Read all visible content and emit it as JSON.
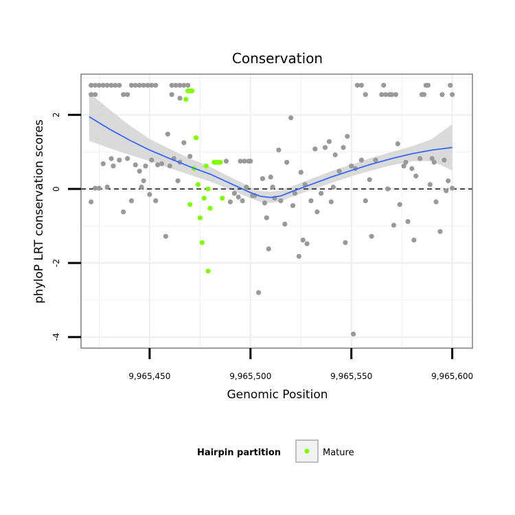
{
  "chart_data": {
    "type": "scatter",
    "title": "Conservation",
    "xlabel": "Genomic Position",
    "ylabel": "phyloP LRT conservation scores",
    "xlim": [
      9965416,
      9965610
    ],
    "ylim": [
      -4.3,
      3.1
    ],
    "x_ticks": [
      {
        "value": 9965450,
        "label": "9,965,450"
      },
      {
        "value": 9965500,
        "label": "9,965,500"
      },
      {
        "value": 9965550,
        "label": "9,965,550"
      },
      {
        "value": 9965600,
        "label": "9,965,600"
      }
    ],
    "y_ticks": [
      {
        "value": -4,
        "label": "-4"
      },
      {
        "value": -2,
        "label": "-2"
      },
      {
        "value": 0,
        "label": "0"
      },
      {
        "value": 2,
        "label": "2"
      }
    ],
    "grid": true,
    "reference_line": {
      "y": 0,
      "style": "dashed",
      "color": "#000000"
    },
    "colors": {
      "other": "#999999",
      "mature": "#7FFF00",
      "smooth": "#3366FF",
      "ribbon": "#D3D3D3",
      "panel_border": "#7F7F7F",
      "grid_major": "#F0F0F0"
    },
    "legend": {
      "title": "Hairpin partition",
      "placement": "bottom",
      "entries": [
        {
          "label": "Mature",
          "color": "#7FFF00"
        }
      ]
    },
    "series": [
      {
        "name": "Mature",
        "color": "#7FFF00",
        "points": [
          [
            9965468,
            2.42
          ],
          [
            9965469,
            2.65
          ],
          [
            9965470,
            2.65
          ],
          [
            9965471,
            2.65
          ],
          [
            9965473,
            1.38
          ],
          [
            9965472,
            0.55
          ],
          [
            9965474,
            0.12
          ],
          [
            9965470,
            -0.42
          ],
          [
            9965475,
            -0.78
          ],
          [
            9965476,
            -1.45
          ],
          [
            9965477,
            -0.25
          ],
          [
            9965478,
            0.62
          ],
          [
            9965479,
            -2.22
          ],
          [
            9965480,
            -0.52
          ],
          [
            9965482,
            0.72
          ],
          [
            9965483,
            0.72
          ],
          [
            9965484,
            0.72
          ],
          [
            9965485,
            0.72
          ],
          [
            9965486,
            -0.25
          ],
          [
            9965479,
            0.0
          ]
        ]
      },
      {
        "points": [
          [
            9965421,
            2.8
          ],
          [
            9965423,
            2.8
          ],
          [
            9965425,
            2.8
          ],
          [
            9965427,
            2.8
          ],
          [
            9965429,
            2.8
          ],
          [
            9965431,
            2.8
          ],
          [
            9965433,
            2.8
          ],
          [
            9965435,
            2.8
          ],
          [
            9965441,
            2.8
          ],
          [
            9965443,
            2.8
          ],
          [
            9965445,
            2.8
          ],
          [
            9965447,
            2.8
          ],
          [
            9965449,
            2.8
          ],
          [
            9965451,
            2.8
          ],
          [
            9965453,
            2.8
          ],
          [
            9965461,
            2.8
          ],
          [
            9965463,
            2.8
          ],
          [
            9965465,
            2.8
          ],
          [
            9965467,
            2.8
          ],
          [
            9965469,
            2.8
          ],
          [
            9965421,
            2.55
          ],
          [
            9965423,
            2.55
          ],
          [
            9965437,
            2.55
          ],
          [
            9965439,
            2.55
          ],
          [
            9965461,
            2.55
          ],
          [
            9965465,
            2.45
          ],
          [
            9965421,
            -0.35
          ],
          [
            9965423,
            0.02
          ],
          [
            9965425,
            0.02
          ],
          [
            9965427,
            0.68
          ],
          [
            9965429,
            0.05
          ],
          [
            9965431,
            0.82
          ],
          [
            9965432,
            0.62
          ],
          [
            9965435,
            0.78
          ],
          [
            9965437,
            -0.62
          ],
          [
            9965439,
            0.82
          ],
          [
            9965441,
            -0.32
          ],
          [
            9965443,
            0.65
          ],
          [
            9965445,
            0.48
          ],
          [
            9965446,
            0.05
          ],
          [
            9965447,
            0.22
          ],
          [
            9965448,
            0.62
          ],
          [
            9965450,
            -0.15
          ],
          [
            9965451,
            0.78
          ],
          [
            9965453,
            -0.32
          ],
          [
            9965454,
            0.65
          ],
          [
            9965456,
            0.68
          ],
          [
            9965458,
            -1.28
          ],
          [
            9965459,
            1.48
          ],
          [
            9965460,
            0.62
          ],
          [
            9965462,
            0.82
          ],
          [
            9965464,
            0.22
          ],
          [
            9965465,
            0.72
          ],
          [
            9965467,
            1.25
          ],
          [
            9965470,
            0.88
          ],
          [
            9965488,
            0.75
          ],
          [
            9965490,
            -0.35
          ],
          [
            9965492,
            -0.12
          ],
          [
            9965494,
            -0.22
          ],
          [
            9965495,
            0.75
          ],
          [
            9965497,
            0.75
          ],
          [
            9965499,
            0.75
          ],
          [
            9965500,
            0.75
          ],
          [
            9965496,
            -0.32
          ],
          [
            9965498,
            0.05
          ],
          [
            9965501,
            -0.18
          ],
          [
            9965502,
            -0.18
          ],
          [
            9965504,
            -2.8
          ],
          [
            9965506,
            0.28
          ],
          [
            9965507,
            -0.38
          ],
          [
            9965508,
            -0.78
          ],
          [
            9965509,
            -1.62
          ],
          [
            9965510,
            0.32
          ],
          [
            9965511,
            0.05
          ],
          [
            9965512,
            -0.25
          ],
          [
            9965514,
            1.05
          ],
          [
            9965515,
            -0.32
          ],
          [
            9965517,
            -0.95
          ],
          [
            9965518,
            0.72
          ],
          [
            9965520,
            1.92
          ],
          [
            9965521,
            -0.45
          ],
          [
            9965522,
            -0.12
          ],
          [
            9965524,
            -1.82
          ],
          [
            9965525,
            0.45
          ],
          [
            9965526,
            -1.38
          ],
          [
            9965527,
            0.12
          ],
          [
            9965528,
            -1.48
          ],
          [
            9965530,
            -0.32
          ],
          [
            9965532,
            1.08
          ],
          [
            9965533,
            -0.62
          ],
          [
            9965535,
            -0.12
          ],
          [
            9965537,
            1.12
          ],
          [
            9965539,
            1.28
          ],
          [
            9965540,
            -0.35
          ],
          [
            9965541,
            0.05
          ],
          [
            9965542,
            0.92
          ],
          [
            9965544,
            0.48
          ],
          [
            9965546,
            1.12
          ],
          [
            9965547,
            -1.45
          ],
          [
            9965548,
            1.42
          ],
          [
            9965550,
            0.62
          ],
          [
            9965551,
            -3.92
          ],
          [
            9965552,
            0.55
          ],
          [
            9965553,
            2.8
          ],
          [
            9965555,
            2.8
          ],
          [
            9965557,
            2.55
          ],
          [
            9965555,
            0.78
          ],
          [
            9965557,
            -0.32
          ],
          [
            9965559,
            0.25
          ],
          [
            9965560,
            -1.28
          ],
          [
            9965562,
            0.78
          ],
          [
            9965565,
            2.55
          ],
          [
            9965566,
            2.8
          ],
          [
            9965567,
            2.55
          ],
          [
            9965568,
            0.0
          ],
          [
            9965569,
            2.55
          ],
          [
            9965570,
            2.55
          ],
          [
            9965571,
            -0.98
          ],
          [
            9965572,
            2.55
          ],
          [
            9965573,
            1.22
          ],
          [
            9965574,
            -0.42
          ],
          [
            9965576,
            0.62
          ],
          [
            9965577,
            0.72
          ],
          [
            9965578,
            -0.88
          ],
          [
            9965580,
            0.55
          ],
          [
            9965581,
            -1.38
          ],
          [
            9965582,
            0.35
          ],
          [
            9965584,
            0.82
          ],
          [
            9965585,
            2.55
          ],
          [
            9965586,
            2.55
          ],
          [
            9965587,
            2.8
          ],
          [
            9965588,
            2.8
          ],
          [
            9965589,
            0.12
          ],
          [
            9965590,
            0.82
          ],
          [
            9965591,
            0.72
          ],
          [
            9965592,
            -0.35
          ],
          [
            9965594,
            -1.15
          ],
          [
            9965595,
            2.55
          ],
          [
            9965596,
            0.78
          ],
          [
            9965597,
            -0.05
          ],
          [
            9965598,
            0.22
          ],
          [
            9965599,
            2.8
          ],
          [
            9965600,
            2.55
          ],
          [
            9965600,
            0.02
          ]
        ],
        "color": "#999999"
      }
    ],
    "smooth": {
      "color": "#3366FF",
      "points": [
        [
          9965420,
          1.95
        ],
        [
          9965430,
          1.62
        ],
        [
          9965440,
          1.32
        ],
        [
          9965450,
          1.05
        ],
        [
          9965460,
          0.82
        ],
        [
          9965470,
          0.6
        ],
        [
          9965480,
          0.4
        ],
        [
          9965490,
          0.15
        ],
        [
          9965500,
          -0.1
        ],
        [
          9965505,
          -0.2
        ],
        [
          9965510,
          -0.23
        ],
        [
          9965515,
          -0.19
        ],
        [
          9965520,
          -0.08
        ],
        [
          9965530,
          0.12
        ],
        [
          9965540,
          0.32
        ],
        [
          9965550,
          0.5
        ],
        [
          9965560,
          0.67
        ],
        [
          9965570,
          0.82
        ],
        [
          9965580,
          0.95
        ],
        [
          9965590,
          1.05
        ],
        [
          9965600,
          1.12
        ]
      ],
      "ci_upper": [
        2.6,
        2.15,
        1.72,
        1.35,
        1.08,
        0.82,
        0.6,
        0.32,
        0.05,
        -0.05,
        -0.08,
        -0.04,
        0.06,
        0.27,
        0.48,
        0.66,
        0.84,
        1.0,
        1.15,
        1.35,
        1.75
      ],
      "ci_lower": [
        1.3,
        1.1,
        0.92,
        0.75,
        0.56,
        0.38,
        0.2,
        -0.02,
        -0.25,
        -0.35,
        -0.38,
        -0.34,
        -0.22,
        -0.03,
        0.16,
        0.34,
        0.5,
        0.64,
        0.75,
        0.75,
        0.5
      ]
    }
  }
}
